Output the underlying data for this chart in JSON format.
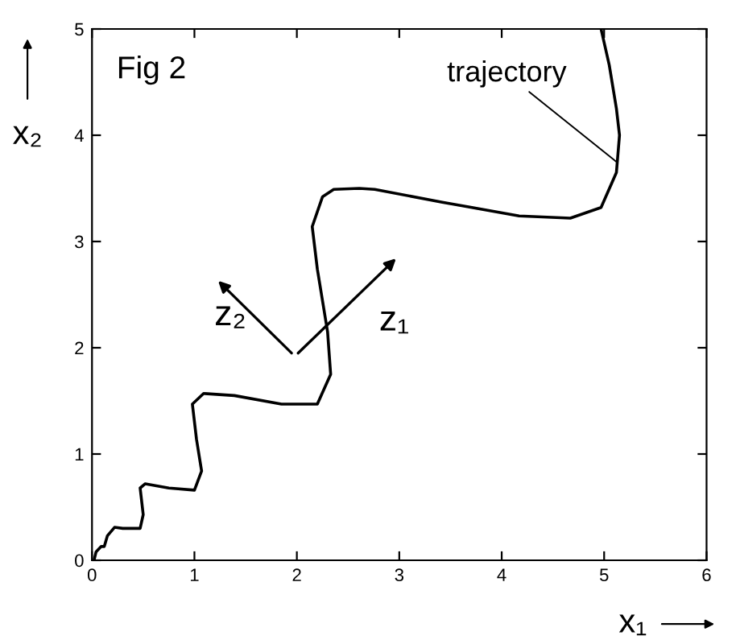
{
  "chart_data": {
    "type": "line",
    "xlabel": "x₁",
    "ylabel": "x₂",
    "color": "#000000",
    "x": [
      0.02,
      0.04,
      0.09,
      0.12,
      0.15,
      0.22,
      0.3,
      0.47,
      0.5,
      0.47,
      0.52,
      0.75,
      1.0,
      1.07,
      1.02,
      0.98,
      1.09,
      1.39,
      1.85,
      2.2,
      2.33,
      2.3,
      2.2,
      2.15,
      2.25,
      2.36,
      2.61,
      2.76,
      3.42,
      4.17,
      4.67,
      4.97,
      5.12,
      5.15,
      5.12,
      5.05,
      4.97
    ],
    "values": [
      0,
      0.08,
      0.13,
      0.13,
      0.23,
      0.31,
      0.3,
      0.3,
      0.43,
      0.68,
      0.72,
      0.68,
      0.66,
      0.84,
      1.14,
      1.47,
      1.57,
      1.55,
      1.47,
      1.47,
      1.75,
      2.15,
      2.74,
      3.14,
      3.42,
      3.49,
      3.5,
      3.49,
      3.37,
      3.24,
      3.22,
      3.32,
      3.65,
      4.0,
      4.25,
      4.66,
      5.0
    ],
    "xlim": [
      0,
      6
    ],
    "ylim": [
      0,
      5
    ],
    "xticks": [
      0,
      1,
      2,
      3,
      4,
      5,
      6
    ],
    "yticks": [
      0,
      1,
      2,
      3,
      4,
      5
    ],
    "grid": false,
    "annotations": [
      "Fig 2",
      {
        "text": "trajectory",
        "x": 5.12,
        "y": 3.75
      },
      "z₁",
      "z₂"
    ]
  }
}
